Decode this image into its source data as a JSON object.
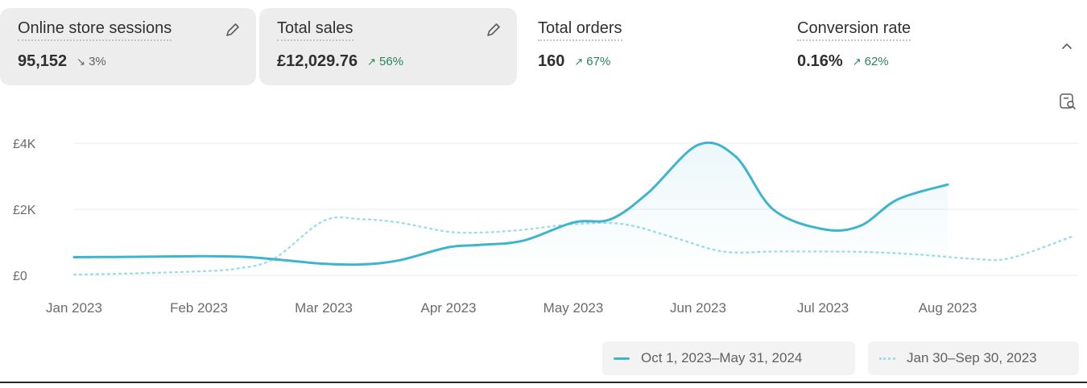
{
  "metrics": [
    {
      "label": "Online store sessions",
      "value": "95,152",
      "change": "3%",
      "direction": "down",
      "active": true,
      "editable": true
    },
    {
      "label": "Total sales",
      "value": "£12,029.76",
      "change": "56%",
      "direction": "up",
      "active": true,
      "editable": true
    },
    {
      "label": "Total orders",
      "value": "160",
      "change": "67%",
      "direction": "up",
      "active": false,
      "editable": false
    },
    {
      "label": "Conversion rate",
      "value": "0.16%",
      "change": "62%",
      "direction": "up",
      "active": false,
      "editable": false
    }
  ],
  "icons": {
    "edit": "pencil-icon",
    "collapse": "chevron-up-icon",
    "chart_zoom": "chart-search-icon",
    "arrow_up": "↗",
    "arrow_down": "↘"
  },
  "legend": {
    "current": "Oct 1, 2023–May 31, 2024",
    "comparison": "Jan 30–Sep 30, 2023"
  },
  "colors": {
    "current_line": "#3fb4cd",
    "comparison_line": "#9fdde9",
    "up": "#29845a",
    "down": "#616161"
  },
  "chart_data": {
    "type": "line",
    "x_labels": [
      "Jan 2023",
      "Feb 2023",
      "Mar 2023",
      "Apr 2023",
      "May 2023",
      "Jun 2023",
      "Jul 2023",
      "Aug 2023"
    ],
    "y_ticks": [
      "£0",
      "£2K",
      "£4K"
    ],
    "ylim": [
      0,
      4000
    ],
    "grid": true,
    "legend_position": "bottom-right",
    "series": [
      {
        "name": "Oct 1, 2023–May 31, 2024",
        "style": "solid",
        "x": [
          0,
          0.5,
          1,
          1.35,
          1.65,
          2,
          2.3,
          2.6,
          3,
          3.25,
          3.6,
          4,
          4.3,
          4.6,
          5,
          5.3,
          5.6,
          6,
          6.3,
          6.6,
          7
        ],
        "y": [
          550,
          560,
          580,
          560,
          470,
          350,
          330,
          450,
          850,
          920,
          1050,
          1600,
          1700,
          2500,
          3950,
          3600,
          2000,
          1400,
          1500,
          2300,
          2750
        ]
      },
      {
        "name": "Jan 30–Sep 30, 2023",
        "style": "dotted",
        "x": [
          0,
          0.5,
          1,
          1.3,
          1.6,
          2,
          2.3,
          2.6,
          3,
          3.3,
          3.6,
          4,
          4.4,
          4.8,
          5.2,
          5.6,
          6,
          6.4,
          6.8,
          7.2,
          7.5,
          8
        ],
        "y": [
          20,
          60,
          120,
          200,
          500,
          1650,
          1700,
          1600,
          1320,
          1300,
          1380,
          1550,
          1550,
          1150,
          720,
          720,
          720,
          700,
          620,
          500,
          520,
          1180
        ]
      }
    ]
  }
}
